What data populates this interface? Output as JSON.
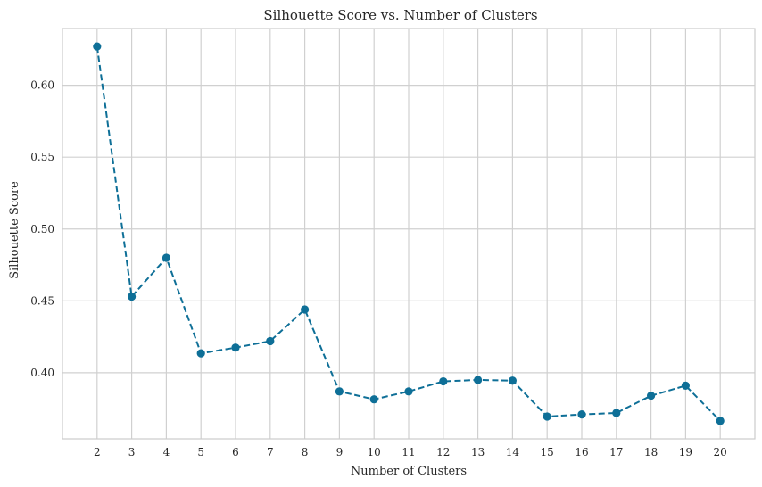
{
  "chart_data": {
    "type": "line",
    "title": "Silhouette Score vs. Number of Clusters",
    "xlabel": "Number of Clusters",
    "ylabel": "Silhouette Score",
    "x": [
      2,
      3,
      4,
      5,
      6,
      7,
      8,
      9,
      10,
      11,
      12,
      13,
      14,
      15,
      16,
      17,
      18,
      19,
      20
    ],
    "x_tick_labels": [
      "2",
      "3",
      "4",
      "5",
      "6",
      "7",
      "8",
      "9",
      "10",
      "11",
      "12",
      "13",
      "14",
      "15",
      "16",
      "17",
      "18",
      "19",
      "20"
    ],
    "y": [
      0.627,
      0.453,
      0.48,
      0.4135,
      0.4175,
      0.422,
      0.444,
      0.387,
      0.3815,
      0.387,
      0.394,
      0.395,
      0.3945,
      0.3695,
      0.371,
      0.372,
      0.384,
      0.391,
      0.3665
    ],
    "y_ticks": [
      0.4,
      0.45,
      0.5,
      0.55,
      0.6
    ],
    "y_tick_labels": [
      "0.40",
      "0.45",
      "0.50",
      "0.55",
      "0.60"
    ],
    "xlim": [
      1,
      21
    ],
    "ylim": [
      0.354,
      0.6395
    ],
    "line_style": "dashed",
    "marker": "circle",
    "color": "#0e6f97",
    "grid": true
  }
}
